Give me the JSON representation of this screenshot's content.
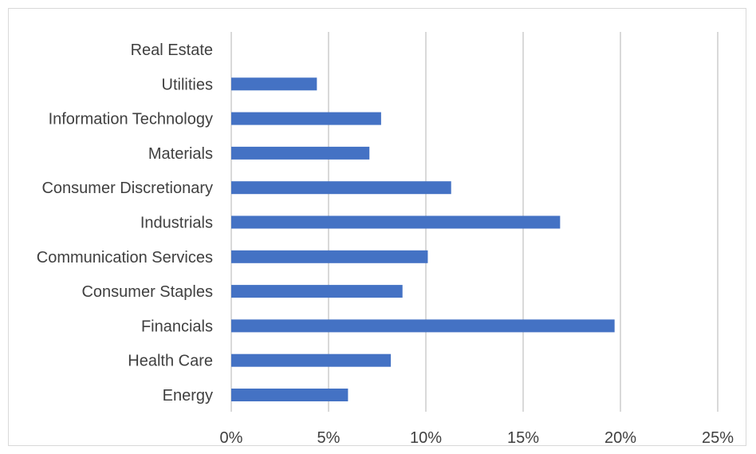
{
  "chart_data": {
    "type": "bar",
    "orientation": "horizontal",
    "categories": [
      "Real Estate",
      "Utilities",
      "Information Technology",
      "Materials",
      "Consumer Discretionary",
      "Industrials",
      "Communication Services",
      "Consumer Staples",
      "Financials",
      "Health Care",
      "Energy"
    ],
    "values": [
      0,
      4.4,
      7.7,
      7.1,
      11.3,
      16.9,
      10.1,
      8.8,
      19.7,
      8.2,
      6.0
    ],
    "value_unit": "%",
    "xlim": [
      0,
      25
    ],
    "x_ticks": [
      "0%",
      "5%",
      "10%",
      "15%",
      "20%",
      "25%"
    ],
    "tick_values": [
      0,
      5,
      10,
      15,
      20,
      25
    ],
    "title": "",
    "xlabel": "",
    "ylabel": "",
    "grid": "vertical",
    "legend": "none",
    "bar_color": "#4472c4",
    "grid_color": "#d9d9d9"
  }
}
